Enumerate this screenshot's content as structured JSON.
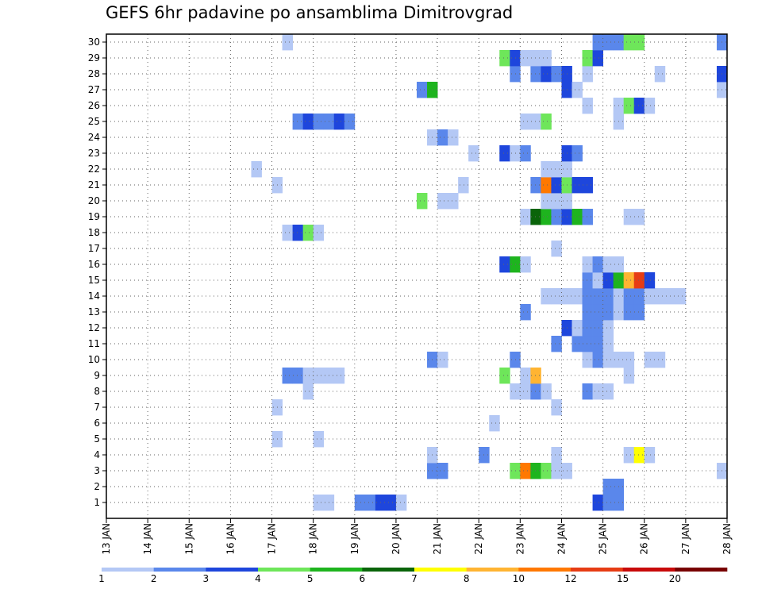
{
  "chart_data": {
    "type": "heatmap",
    "title": "GEFS 6hr padavine po ansamblima Dimitrovgrad",
    "x_labels": [
      "13 JAN",
      "14 JAN",
      "15 JAN",
      "16 JAN",
      "17 JAN",
      "18 JAN",
      "19 JAN",
      "20 JAN",
      "21 JAN",
      "22 JAN",
      "23 JAN",
      "24 JAN",
      "25 JAN",
      "26 JAN",
      "27 JAN",
      "28 JAN"
    ],
    "y_labels": [
      "1",
      "2",
      "3",
      "4",
      "5",
      "6",
      "7",
      "8",
      "9",
      "10",
      "11",
      "12",
      "13",
      "14",
      "15",
      "16",
      "17",
      "18",
      "19",
      "20",
      "21",
      "22",
      "23",
      "24",
      "25",
      "26",
      "27",
      "28",
      "29",
      "30"
    ],
    "steps_per_day": 4,
    "grid": true,
    "colorbar": {
      "labels": [
        "1",
        "2",
        "3",
        "4",
        "5",
        "6",
        "7",
        "8",
        "10",
        "12",
        "15",
        "20"
      ],
      "colors": [
        "#b4c8f5",
        "#5a87eb",
        "#1e46dc",
        "#6ee65a",
        "#1eb41e",
        "#0a640a",
        "#ffff00",
        "#ffb432",
        "#ff7800",
        "#e63c14",
        "#c80a0a",
        "#780000"
      ]
    },
    "cells": [
      [
        1,
        20,
        1
      ],
      [
        1,
        21,
        1
      ],
      [
        1,
        24,
        2
      ],
      [
        1,
        25,
        2
      ],
      [
        1,
        26,
        3
      ],
      [
        1,
        27,
        3
      ],
      [
        1,
        28,
        1
      ],
      [
        1,
        47,
        3
      ],
      [
        1,
        48,
        2
      ],
      [
        1,
        49,
        2
      ],
      [
        2,
        48,
        2
      ],
      [
        2,
        49,
        2
      ],
      [
        3,
        31,
        2
      ],
      [
        3,
        32,
        2
      ],
      [
        3,
        39,
        4
      ],
      [
        3,
        40,
        9
      ],
      [
        3,
        41,
        5
      ],
      [
        3,
        42,
        4
      ],
      [
        3,
        43,
        1
      ],
      [
        3,
        44,
        1
      ],
      [
        3,
        59,
        1
      ],
      [
        4,
        31,
        1
      ],
      [
        4,
        36,
        2
      ],
      [
        4,
        43,
        1
      ],
      [
        4,
        50,
        1
      ],
      [
        4,
        51,
        7
      ],
      [
        4,
        52,
        1
      ],
      [
        5,
        16,
        1
      ],
      [
        5,
        20,
        1
      ],
      [
        6,
        37,
        1
      ],
      [
        7,
        16,
        1
      ],
      [
        7,
        43,
        1
      ],
      [
        8,
        19,
        1
      ],
      [
        8,
        39,
        1
      ],
      [
        8,
        40,
        1
      ],
      [
        8,
        41,
        2
      ],
      [
        8,
        42,
        1
      ],
      [
        8,
        46,
        2
      ],
      [
        8,
        47,
        1
      ],
      [
        8,
        48,
        1
      ],
      [
        9,
        17,
        2
      ],
      [
        9,
        18,
        2
      ],
      [
        9,
        19,
        1
      ],
      [
        9,
        20,
        1
      ],
      [
        9,
        21,
        1
      ],
      [
        9,
        22,
        1
      ],
      [
        9,
        38,
        4
      ],
      [
        9,
        40,
        1
      ],
      [
        9,
        41,
        8
      ],
      [
        9,
        50,
        1
      ],
      [
        10,
        31,
        2
      ],
      [
        10,
        32,
        1
      ],
      [
        10,
        39,
        2
      ],
      [
        10,
        46,
        1
      ],
      [
        10,
        47,
        2
      ],
      [
        10,
        48,
        1
      ],
      [
        10,
        49,
        1
      ],
      [
        10,
        50,
        1
      ],
      [
        10,
        52,
        1
      ],
      [
        10,
        53,
        1
      ],
      [
        11,
        43,
        2
      ],
      [
        11,
        45,
        2
      ],
      [
        11,
        46,
        2
      ],
      [
        11,
        47,
        2
      ],
      [
        11,
        48,
        1
      ],
      [
        12,
        44,
        3
      ],
      [
        12,
        45,
        1
      ],
      [
        12,
        46,
        2
      ],
      [
        12,
        47,
        2
      ],
      [
        12,
        48,
        1
      ],
      [
        13,
        40,
        2
      ],
      [
        13,
        46,
        2
      ],
      [
        13,
        47,
        2
      ],
      [
        13,
        48,
        2
      ],
      [
        13,
        49,
        1
      ],
      [
        13,
        50,
        2
      ],
      [
        13,
        51,
        2
      ],
      [
        14,
        42,
        1
      ],
      [
        14,
        43,
        1
      ],
      [
        14,
        44,
        1
      ],
      [
        14,
        45,
        1
      ],
      [
        14,
        46,
        2
      ],
      [
        14,
        47,
        2
      ],
      [
        14,
        48,
        2
      ],
      [
        14,
        49,
        1
      ],
      [
        14,
        50,
        2
      ],
      [
        14,
        51,
        2
      ],
      [
        14,
        52,
        1
      ],
      [
        14,
        53,
        1
      ],
      [
        14,
        54,
        1
      ],
      [
        14,
        55,
        1
      ],
      [
        15,
        46,
        2
      ],
      [
        15,
        47,
        1
      ],
      [
        15,
        48,
        3
      ],
      [
        15,
        49,
        5
      ],
      [
        15,
        50,
        8
      ],
      [
        15,
        51,
        10
      ],
      [
        15,
        52,
        3
      ],
      [
        16,
        38,
        3
      ],
      [
        16,
        39,
        5
      ],
      [
        16,
        40,
        1
      ],
      [
        16,
        46,
        1
      ],
      [
        16,
        47,
        2
      ],
      [
        16,
        48,
        1
      ],
      [
        16,
        49,
        1
      ],
      [
        17,
        43,
        1
      ],
      [
        18,
        17,
        1
      ],
      [
        18,
        18,
        3
      ],
      [
        18,
        19,
        4
      ],
      [
        18,
        20,
        1
      ],
      [
        19,
        40,
        1
      ],
      [
        19,
        41,
        6
      ],
      [
        19,
        42,
        5
      ],
      [
        19,
        43,
        2
      ],
      [
        19,
        44,
        3
      ],
      [
        19,
        45,
        5
      ],
      [
        19,
        46,
        2
      ],
      [
        19,
        50,
        1
      ],
      [
        19,
        51,
        1
      ],
      [
        20,
        30,
        4
      ],
      [
        20,
        32,
        1
      ],
      [
        20,
        33,
        1
      ],
      [
        20,
        42,
        1
      ],
      [
        20,
        43,
        1
      ],
      [
        20,
        44,
        1
      ],
      [
        21,
        16,
        1
      ],
      [
        21,
        34,
        1
      ],
      [
        21,
        41,
        2
      ],
      [
        21,
        42,
        9
      ],
      [
        21,
        43,
        3
      ],
      [
        21,
        44,
        4
      ],
      [
        21,
        45,
        3
      ],
      [
        21,
        46,
        3
      ],
      [
        22,
        14,
        1
      ],
      [
        22,
        42,
        1
      ],
      [
        22,
        43,
        1
      ],
      [
        22,
        44,
        1
      ],
      [
        23,
        35,
        1
      ],
      [
        23,
        38,
        3
      ],
      [
        23,
        39,
        1
      ],
      [
        23,
        40,
        2
      ],
      [
        23,
        44,
        3
      ],
      [
        23,
        45,
        2
      ],
      [
        24,
        31,
        1
      ],
      [
        24,
        32,
        2
      ],
      [
        24,
        33,
        1
      ],
      [
        25,
        18,
        2
      ],
      [
        25,
        19,
        3
      ],
      [
        25,
        20,
        2
      ],
      [
        25,
        21,
        2
      ],
      [
        25,
        22,
        3
      ],
      [
        25,
        23,
        2
      ],
      [
        25,
        40,
        1
      ],
      [
        25,
        41,
        1
      ],
      [
        25,
        42,
        4
      ],
      [
        25,
        49,
        1
      ],
      [
        26,
        46,
        1
      ],
      [
        26,
        49,
        1
      ],
      [
        26,
        50,
        4
      ],
      [
        26,
        51,
        3
      ],
      [
        26,
        52,
        1
      ],
      [
        27,
        30,
        2
      ],
      [
        27,
        31,
        5
      ],
      [
        27,
        44,
        3
      ],
      [
        27,
        45,
        1
      ],
      [
        27,
        59,
        1
      ],
      [
        28,
        39,
        2
      ],
      [
        28,
        41,
        2
      ],
      [
        28,
        42,
        3
      ],
      [
        28,
        43,
        2
      ],
      [
        28,
        44,
        3
      ],
      [
        28,
        46,
        1
      ],
      [
        28,
        53,
        1
      ],
      [
        28,
        59,
        3
      ],
      [
        29,
        38,
        4
      ],
      [
        29,
        39,
        3
      ],
      [
        29,
        40,
        1
      ],
      [
        29,
        41,
        1
      ],
      [
        29,
        42,
        1
      ],
      [
        29,
        46,
        4
      ],
      [
        29,
        47,
        3
      ],
      [
        30,
        17,
        1
      ],
      [
        30,
        47,
        2
      ],
      [
        30,
        48,
        2
      ],
      [
        30,
        49,
        2
      ],
      [
        30,
        50,
        4
      ],
      [
        30,
        51,
        4
      ],
      [
        30,
        59,
        2
      ]
    ]
  }
}
